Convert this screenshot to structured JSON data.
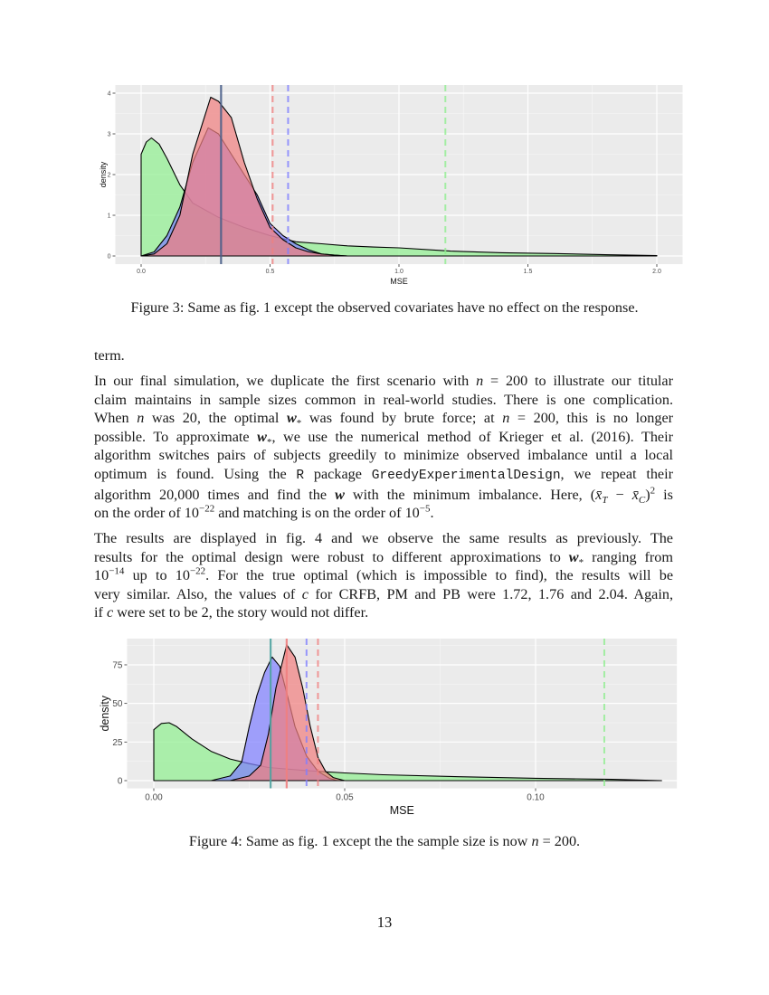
{
  "figure3": {
    "caption": "Figure 3: Same as fig. 1 except the observed covariates have no effect on the response.",
    "chart": {
      "type": "area",
      "title": "",
      "xlabel": "MSE",
      "ylabel": "density",
      "xticks": [
        "0.0",
        "0.5",
        "1.0",
        "1.5",
        "2.0"
      ],
      "xtick_values": [
        0.0,
        0.5,
        1.0,
        1.5,
        2.0
      ],
      "yticks": [
        "0",
        "1",
        "2",
        "3",
        "4"
      ],
      "ytick_values": [
        0,
        1,
        2,
        3,
        4
      ]
    }
  },
  "paragraph_term": "term.",
  "paragraph1": {
    "lines": [
      "In our final simulation, we duplicate the first scenario with n = 200 to illustrate our titular",
      "claim maintains in sample sizes common in real-world studies. There is one complication.",
      "When n was 20, the optimal w* was found by brute force; at n = 200, this is no longer",
      "possible. To approximate w*, we use the numerical method of Krieger et al. (2016). Their",
      "algorithm switches pairs of subjects greedily to minimize observed imbalance until a local",
      "optimum is found. Using the R package GreedyExperimentalDesign, we repeat their",
      "algorithm 20,000 times and find the w with the minimum imbalance. Here, (x̄T − x̄C)² is",
      "on the order of 10^−22 and matching is on the order of 10^−5."
    ],
    "segments": {
      "l1a": "In our final simulation, we duplicate the first scenario with ",
      "n": "n",
      "eq200": " = 200 to illustrate our titular",
      "l2": "claim maintains in sample sizes common in real-world studies.  There is one complication.",
      "l3a": "When ",
      "l3b": " was 20, the optimal ",
      "wstar": "w",
      "star": "*",
      "l3c": " was found by brute force; at ",
      "l3d": " = 200, this is no longer",
      "l4a": "possible.  To approximate ",
      "l4b": ", we use the numerical method of Krieger et al. (2016).  Their",
      "l5": "algorithm switches pairs of subjects greedily to minimize observed imbalance until a local",
      "l6a": "optimum is found.  Using the ",
      "R": "R",
      "l6b": " package ",
      "pkg": "GreedyExperimentalDesign",
      "l6c": ", we repeat their",
      "l7a": "algorithm 20,000 times and find the ",
      "w": "w",
      "l7b": " with the minimum imbalance. Here, (",
      "xT": "x̄",
      "T": "T",
      "minus": " − ",
      "xC": "x̄",
      "C": "C",
      "l7c": ")",
      "sq": "2",
      "l7d": " is",
      "l8a": "on the order of 10",
      "e22": "−22",
      "l8b": " and matching is on the order of 10",
      "e5": "−5",
      "l8c": "."
    }
  },
  "paragraph2": {
    "segments": {
      "l1": "The results are displayed in fig. 4 and we observe the same results as previously.  The",
      "l2a": "results for the optimal design were robust to different approximations to ",
      "w": "w",
      "star": "*",
      "l2b": " ranging from",
      "l3a": "10",
      "e14": "−14",
      "l3b": " up to 10",
      "e22": "−22",
      "l3c": ".  For the true optimal (which is impossible to find), the results will be",
      "l4a": "very similar. Also, the values of ",
      "c": "c",
      "l4b": " for CRFB, PM and PB were 1.72, 1.76 and 2.04. Again,",
      "l5a": "if ",
      "l5b": " were set to be 2, the story would not differ."
    }
  },
  "figure4": {
    "caption": "Figure 4: Same as fig. 1 except the the sample size is now n = 200.",
    "caption_parts": {
      "a": "Figure 4: Same as fig. 1 except the the sample size is now ",
      "n": "n",
      "b": " = 200."
    },
    "chart": {
      "type": "area",
      "title": "",
      "xlabel": "MSE",
      "ylabel": "density",
      "xticks": [
        "0.00",
        "0.05",
        "0.10"
      ],
      "xtick_values": [
        0.0,
        0.05,
        0.1
      ],
      "yticks": [
        "0",
        "25",
        "50",
        "75"
      ],
      "ytick_values": [
        0,
        25,
        50,
        75
      ]
    }
  },
  "page_number": "13",
  "chart_data": [
    {
      "type": "area",
      "title": "Figure 3 density of MSE",
      "xlabel": "MSE",
      "ylabel": "density",
      "xlim": [
        -0.1,
        2.1
      ],
      "ylim": [
        -0.2,
        4.2
      ],
      "grid": true,
      "legend": "none",
      "series": [
        {
          "name": "green",
          "color": "#90EE90",
          "x": [
            0.0,
            0.0,
            0.02,
            0.04,
            0.07,
            0.1,
            0.15,
            0.2,
            0.3,
            0.4,
            0.5,
            0.6,
            0.7,
            0.8,
            0.9,
            1.0,
            1.2,
            1.4,
            1.6,
            1.8,
            2.0
          ],
          "values": [
            0,
            2.5,
            2.8,
            2.9,
            2.75,
            2.4,
            1.75,
            1.3,
            0.95,
            0.7,
            0.5,
            0.35,
            0.3,
            0.25,
            0.22,
            0.2,
            0.12,
            0.08,
            0.06,
            0.03,
            0.01
          ]
        },
        {
          "name": "blue",
          "color": "#8080FF",
          "x": [
            0.0,
            0.05,
            0.1,
            0.15,
            0.2,
            0.26,
            0.3,
            0.35,
            0.4,
            0.45,
            0.5,
            0.55,
            0.6,
            0.65,
            0.7,
            0.75,
            0.8
          ],
          "values": [
            0,
            0.1,
            0.5,
            1.2,
            2.3,
            3.15,
            3.0,
            2.5,
            2.0,
            1.5,
            0.8,
            0.5,
            0.3,
            0.15,
            0.05,
            0.02,
            0
          ]
        },
        {
          "name": "red",
          "color": "#F08080",
          "x": [
            0.0,
            0.05,
            0.1,
            0.15,
            0.2,
            0.27,
            0.3,
            0.35,
            0.4,
            0.45,
            0.5,
            0.55,
            0.6,
            0.65,
            0.7,
            0.75,
            0.8
          ],
          "values": [
            0,
            0.05,
            0.3,
            1.0,
            2.5,
            3.9,
            3.8,
            3.4,
            2.3,
            1.4,
            0.7,
            0.4,
            0.2,
            0.1,
            0.05,
            0.02,
            0
          ]
        }
      ],
      "vlines": [
        {
          "x": 0.31,
          "style": "solid",
          "color": "#4A5F8A"
        },
        {
          "x": 0.51,
          "style": "dashed",
          "color": "#F08080"
        },
        {
          "x": 0.57,
          "style": "dashed",
          "color": "#8080FF"
        },
        {
          "x": 1.18,
          "style": "dashed",
          "color": "#90EE90"
        }
      ]
    },
    {
      "type": "area",
      "title": "Figure 4 density of MSE (n = 200)",
      "xlabel": "MSE",
      "ylabel": "density",
      "xlim": [
        -0.007,
        0.137
      ],
      "ylim": [
        -5,
        92
      ],
      "grid": true,
      "legend": "none",
      "series": [
        {
          "name": "green",
          "color": "#90EE90",
          "x": [
            0.0,
            0.0,
            0.002,
            0.004,
            0.006,
            0.01,
            0.015,
            0.02,
            0.025,
            0.03,
            0.04,
            0.05,
            0.06,
            0.08,
            0.1,
            0.12,
            0.133
          ],
          "values": [
            0,
            33,
            37,
            37.5,
            35,
            27,
            19,
            14,
            11,
            8.5,
            6.5,
            5,
            3.8,
            2.5,
            1.5,
            0.8,
            0
          ]
        },
        {
          "name": "blue",
          "color": "#8080FF",
          "x": [
            0.015,
            0.02,
            0.023,
            0.025,
            0.027,
            0.029,
            0.031,
            0.033,
            0.035,
            0.037,
            0.04,
            0.043,
            0.046,
            0.048
          ],
          "values": [
            0,
            3,
            12,
            35,
            55,
            70,
            80,
            74,
            55,
            35,
            16,
            6,
            1.5,
            0
          ]
        },
        {
          "name": "red",
          "color": "#F08080",
          "x": [
            0.02,
            0.025,
            0.028,
            0.03,
            0.032,
            0.0348,
            0.037,
            0.039,
            0.041,
            0.043,
            0.045,
            0.047,
            0.05
          ],
          "values": [
            0,
            3,
            10,
            30,
            60,
            88,
            80,
            60,
            35,
            15,
            6,
            2,
            0
          ]
        }
      ],
      "vlines": [
        {
          "x": 0.0306,
          "style": "solid",
          "color": "#4FA3A0"
        },
        {
          "x": 0.0348,
          "style": "solid",
          "color": "#F08080"
        },
        {
          "x": 0.04,
          "style": "dashed",
          "color": "#8080FF"
        },
        {
          "x": 0.043,
          "style": "dashed",
          "color": "#F08080"
        },
        {
          "x": 0.118,
          "style": "dashed",
          "color": "#90EE90"
        }
      ]
    }
  ]
}
